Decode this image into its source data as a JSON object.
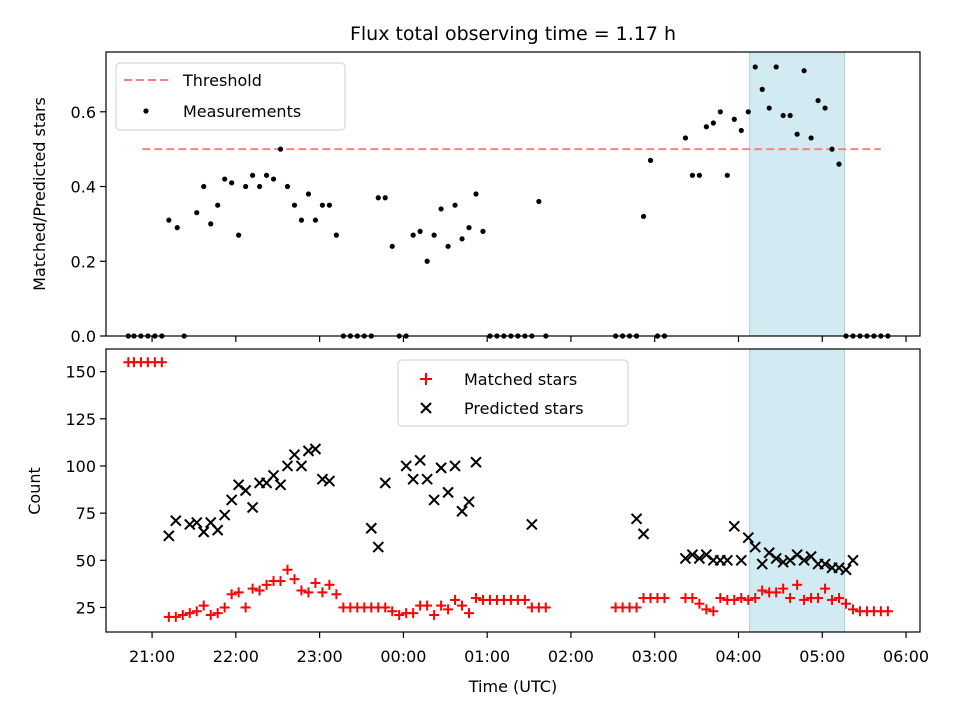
{
  "chart_data": [
    {
      "type": "scatter",
      "title": "Flux total observing time = 1.17 h",
      "ylabel": "Matched/Predicted stars",
      "xlim": [
        "20:27",
        "06:10"
      ],
      "ylim": [
        0,
        0.76
      ],
      "yticks": [
        0.0,
        0.2,
        0.4,
        0.6
      ],
      "ytick_labels": [
        "0.0",
        "0.2",
        "0.4",
        "0.6"
      ],
      "legend": {
        "position": "top-left",
        "entries": [
          "Threshold",
          "Measurements"
        ]
      },
      "threshold": {
        "name": "Threshold",
        "value": 0.5,
        "x_range": [
          "20:53",
          "05:42"
        ],
        "color": "#ff7f7f",
        "style": "dashed"
      },
      "highlight": {
        "x_range": [
          "04:08",
          "05:16"
        ],
        "color": "#add8e6"
      },
      "series": [
        {
          "name": "Measurements",
          "color": "#000000",
          "x": [
            "20:43",
            "20:47",
            "20:52",
            "20:57",
            "21:02",
            "21:07",
            "21:12",
            "21:18",
            "21:23",
            "21:32",
            "21:37",
            "21:42",
            "21:47",
            "21:52",
            "21:57",
            "22:02",
            "22:07",
            "22:12",
            "22:17",
            "22:22",
            "22:27",
            "22:32",
            "22:37",
            "22:42",
            "22:47",
            "22:52",
            "22:57",
            "23:02",
            "23:07",
            "23:12",
            "23:17",
            "23:22",
            "23:27",
            "23:32",
            "23:37",
            "23:42",
            "23:47",
            "23:52",
            "23:57",
            "00:02",
            "00:07",
            "00:12",
            "00:17",
            "00:22",
            "00:27",
            "00:32",
            "00:37",
            "00:42",
            "00:47",
            "00:52",
            "00:57",
            "01:02",
            "01:07",
            "01:12",
            "01:17",
            "01:22",
            "01:27",
            "01:32",
            "01:37",
            "01:42",
            "02:32",
            "02:37",
            "02:42",
            "02:47",
            "02:52",
            "02:57",
            "03:02",
            "03:07",
            "03:22",
            "03:27",
            "03:32",
            "03:37",
            "03:42",
            "03:47",
            "03:52",
            "03:57",
            "04:02",
            "04:07",
            "04:12",
            "04:17",
            "04:22",
            "04:27",
            "04:32",
            "04:37",
            "04:42",
            "04:47",
            "04:52",
            "04:57",
            "05:02",
            "05:07",
            "05:12",
            "05:17",
            "05:22",
            "05:27",
            "05:32",
            "05:37",
            "05:42",
            "05:47"
          ],
          "y": [
            0,
            0,
            0,
            0,
            0,
            0,
            0.31,
            0.29,
            0,
            0.33,
            0.4,
            0.3,
            0.35,
            0.42,
            0.41,
            0.27,
            0.4,
            0.43,
            0.4,
            0.43,
            0.42,
            0.5,
            0.4,
            0.35,
            0.31,
            0.38,
            0.31,
            0.35,
            0.35,
            0.27,
            0,
            0,
            0,
            0,
            0,
            0.37,
            0.37,
            0.24,
            0,
            0,
            0.27,
            0.28,
            0.2,
            0.27,
            0.34,
            0.24,
            0.35,
            0.26,
            0.29,
            0.38,
            0.28,
            0,
            0,
            0,
            0,
            0,
            0,
            0,
            0.36,
            0,
            0,
            0,
            0,
            0,
            0.32,
            0.47,
            0,
            0,
            0.53,
            0.43,
            0.43,
            0.56,
            0.57,
            0.6,
            0.43,
            0.58,
            0.55,
            0.6,
            0.72,
            0.66,
            0.61,
            0.72,
            0.59,
            0.59,
            0.54,
            0.71,
            0.53,
            0.63,
            0.61,
            0.5,
            0.46,
            0,
            0,
            0,
            0,
            0,
            0,
            0
          ]
        }
      ]
    },
    {
      "type": "scatter",
      "xlabel": "Time (UTC)",
      "ylabel": "Count",
      "xlim": [
        "20:27",
        "06:10"
      ],
      "ylim": [
        12,
        162
      ],
      "xticks": [
        "21:00",
        "22:00",
        "23:00",
        "00:00",
        "01:00",
        "02:00",
        "03:00",
        "04:00",
        "05:00",
        "06:00"
      ],
      "yticks": [
        25,
        50,
        75,
        100,
        125,
        150
      ],
      "legend": {
        "position": "top-center",
        "entries": [
          "Matched stars",
          "Predicted stars"
        ]
      },
      "highlight": {
        "x_range": [
          "04:08",
          "05:16"
        ],
        "color": "#add8e6"
      },
      "series": [
        {
          "name": "Matched stars",
          "marker": "+",
          "color": "#ff0000",
          "x": [
            "20:43",
            "20:47",
            "20:52",
            "20:57",
            "21:02",
            "21:07",
            "21:12",
            "21:17",
            "21:22",
            "21:27",
            "21:32",
            "21:37",
            "21:42",
            "21:47",
            "21:52",
            "21:57",
            "22:02",
            "22:07",
            "22:12",
            "22:17",
            "22:22",
            "22:27",
            "22:32",
            "22:37",
            "22:42",
            "22:47",
            "22:52",
            "22:57",
            "23:02",
            "23:07",
            "23:12",
            "23:17",
            "23:22",
            "23:27",
            "23:32",
            "23:37",
            "23:42",
            "23:47",
            "23:52",
            "23:57",
            "00:02",
            "00:07",
            "00:12",
            "00:17",
            "00:22",
            "00:27",
            "00:32",
            "00:37",
            "00:42",
            "00:47",
            "00:52",
            "00:57",
            "01:02",
            "01:07",
            "01:12",
            "01:17",
            "01:22",
            "01:27",
            "01:32",
            "01:37",
            "01:42",
            "02:32",
            "02:37",
            "02:42",
            "02:47",
            "02:52",
            "02:57",
            "03:02",
            "03:07",
            "03:22",
            "03:27",
            "03:32",
            "03:37",
            "03:42",
            "03:47",
            "03:52",
            "03:57",
            "04:02",
            "04:07",
            "04:12",
            "04:17",
            "04:22",
            "04:27",
            "04:32",
            "04:37",
            "04:42",
            "04:47",
            "04:52",
            "04:57",
            "05:02",
            "05:07",
            "05:12",
            "05:17",
            "05:22",
            "05:27",
            "05:32",
            "05:37",
            "05:42",
            "05:47"
          ],
          "y": [
            155,
            155,
            155,
            155,
            155,
            155,
            20,
            20,
            21,
            22,
            23,
            26,
            21,
            22,
            25,
            32,
            33,
            25,
            35,
            34,
            37,
            39,
            39,
            45,
            40,
            34,
            33,
            38,
            33,
            37,
            32,
            25,
            25,
            25,
            25,
            25,
            25,
            25,
            23,
            21,
            22,
            22,
            26,
            26,
            21,
            26,
            24,
            29,
            26,
            22,
            30,
            29,
            29,
            29,
            29,
            29,
            29,
            29,
            25,
            25,
            25,
            25,
            25,
            25,
            25,
            30,
            30,
            30,
            30,
            30,
            30,
            27,
            24,
            23,
            30,
            29,
            29,
            30,
            29,
            30,
            34,
            33,
            33,
            35,
            30,
            37,
            29,
            30,
            30,
            35,
            29,
            30,
            27,
            24,
            23,
            23,
            23,
            23,
            23
          ]
        },
        {
          "name": "Predicted stars",
          "marker": "x",
          "color": "#000000",
          "x": [
            "21:12",
            "21:17",
            "21:27",
            "21:32",
            "21:37",
            "21:42",
            "21:47",
            "21:52",
            "21:57",
            "22:02",
            "22:07",
            "22:12",
            "22:17",
            "22:22",
            "22:27",
            "22:32",
            "22:37",
            "22:42",
            "22:47",
            "22:52",
            "22:57",
            "23:02",
            "23:07",
            "23:37",
            "23:42",
            "23:47",
            "00:02",
            "00:07",
            "00:12",
            "00:17",
            "00:22",
            "00:27",
            "00:32",
            "00:37",
            "00:42",
            "00:47",
            "00:52",
            "01:32",
            "02:47",
            "02:52",
            "03:22",
            "03:27",
            "03:32",
            "03:37",
            "03:42",
            "03:47",
            "03:52",
            "03:57",
            "04:02",
            "04:07",
            "04:12",
            "04:17",
            "04:22",
            "04:27",
            "04:32",
            "04:37",
            "04:42",
            "04:47",
            "04:52",
            "04:57",
            "05:02",
            "05:07",
            "05:12",
            "05:17",
            "05:22"
          ],
          "y": [
            63,
            71,
            69,
            70,
            65,
            70,
            66,
            74,
            82,
            90,
            87,
            78,
            91,
            91,
            95,
            90,
            100,
            106,
            100,
            108,
            109,
            93,
            92,
            67,
            57,
            91,
            100,
            93,
            103,
            93,
            82,
            99,
            86,
            100,
            76,
            81,
            102,
            69,
            72,
            64,
            51,
            53,
            51,
            53,
            50,
            50,
            50,
            68,
            50,
            62,
            57,
            48,
            54,
            51,
            49,
            50,
            53,
            50,
            52,
            48,
            48,
            46,
            46,
            45,
            50
          ]
        }
      ]
    }
  ]
}
